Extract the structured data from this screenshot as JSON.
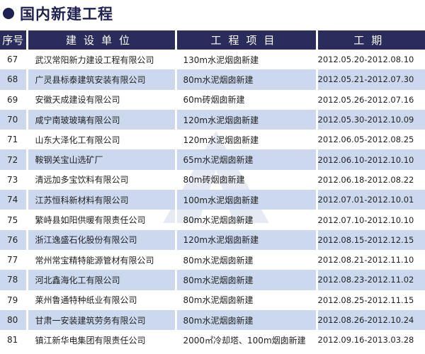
{
  "title": "国内新建工程",
  "headers": [
    "序号",
    "建设单位",
    "工程项目",
    "工期"
  ],
  "rows": [
    [
      "67",
      "武汉常阳新力建设工程有限公司",
      "130m水泥烟囱新建",
      "2012.05.20-2012.08.10"
    ],
    [
      "68",
      "广灵县标泰建筑安装有限公司",
      "80m水泥烟囱新建",
      "2012.05.21-2012.07.30"
    ],
    [
      "69",
      "安徽天成建设有限公司",
      "60m砖烟囱新建",
      "2012.05.26-2012.07.16"
    ],
    [
      "70",
      "咸宁南玻玻璃有限公司",
      "120m水泥烟囱新建",
      "2012.05.30-2012.10.09"
    ],
    [
      "71",
      "山东大泽化工有限公司",
      "120m水泥烟囱新建",
      "2012.06.05-2012.08.25"
    ],
    [
      "72",
      "鞍钢关宝山选矿厂",
      "65m水泥烟囱新建",
      "2012.06.10-2012.10.10"
    ],
    [
      "73",
      "清远加多宝饮料有限公司",
      "80m砖烟囱新建",
      "2012.06.18-2012.08.22"
    ],
    [
      "74",
      "江苏恒科新材料有限公司",
      "100m水泥烟囱新建",
      "2012.07.01-2012.10.01"
    ],
    [
      "75",
      "繁峙县如阳供暖有限责任公司",
      "80m水泥烟囱新建",
      "2012.07.10-2012.10.10"
    ],
    [
      "76",
      "浙江逸盛石化股份有限公司",
      "120m水泥烟囱新建",
      "2012.08.15-2012.12.15"
    ],
    [
      "77",
      "常州常宝精特能源管材有限公司",
      "80m水泥烟囱新建",
      "2012.08.21-2012.11.10"
    ],
    [
      "78",
      "河北鑫海化工有限公司",
      "80m水泥烟囱新建",
      "2012.08.23-2012.11.02"
    ],
    [
      "79",
      "莱州鲁通特种纸业有限公司",
      "80m水泥烟囱新建",
      "2012.08.25-2012.11.15"
    ],
    [
      "80",
      "甘肃一安装建筑劳务有限公司",
      "80m水泥烟囱新建",
      "2012.08.26-2012.10.24"
    ],
    [
      "81",
      "镇江新华电集团有限责任公司",
      "2000㎡冷却塔、100m烟囱新建",
      "2012.09.16-2013.03.28"
    ]
  ],
  "colors": {
    "header": "#2a2c5c",
    "alt_row": "#cbd8ee"
  }
}
